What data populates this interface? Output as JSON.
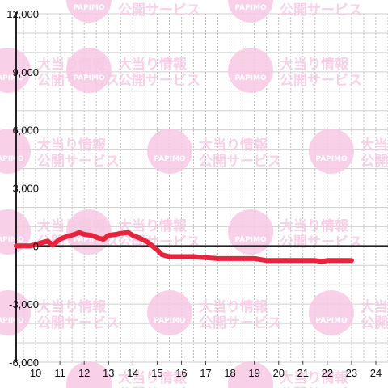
{
  "watermark": {
    "line1": "大当り情報",
    "line2": "公開サービス",
    "logo": "PAPIMO",
    "color": "#f7c9e4"
  },
  "chart_data": {
    "type": "line",
    "title": "",
    "xlabel": "",
    "ylabel": "",
    "xlim": [
      9.2,
      24.5
    ],
    "ylim": [
      -6000,
      12000
    ],
    "y_ticks": [
      12000,
      9000,
      6000,
      3000,
      0,
      -3000,
      -6000
    ],
    "y_tick_labels": [
      "12,000",
      "9,000",
      "6,000",
      "3,000",
      "0",
      "-3,000",
      "-6,000"
    ],
    "x_ticks": [
      10,
      11,
      12,
      13,
      14,
      15,
      16,
      17,
      18,
      19,
      20,
      21,
      22,
      23,
      24
    ],
    "x_tick_labels": [
      "10",
      "11",
      "12",
      "13",
      "14",
      "15",
      "16",
      "17",
      "18",
      "19",
      "20",
      "21",
      "22",
      "23",
      "24"
    ],
    "grid": true,
    "line_color": "#e8243c",
    "series": [
      {
        "x": [
          9.2,
          9.8,
          10.2,
          10.5,
          10.7,
          11.0,
          11.3,
          11.6,
          11.8,
          12.0,
          12.3,
          12.6,
          12.8,
          13.0,
          13.3,
          13.5,
          13.8,
          14.0,
          14.3,
          14.6,
          15.0,
          15.2,
          15.5,
          16.0,
          16.5,
          17.0,
          17.5,
          18.0,
          18.5,
          19.0,
          19.5,
          20.0,
          20.5,
          21.0,
          21.5,
          21.8,
          22.0,
          22.5,
          23.0
        ],
        "y": [
          0,
          0,
          150,
          250,
          50,
          350,
          500,
          600,
          700,
          600,
          550,
          400,
          350,
          550,
          600,
          650,
          700,
          550,
          400,
          200,
          -200,
          -450,
          -550,
          -550,
          -550,
          -600,
          -650,
          -650,
          -650,
          -650,
          -750,
          -750,
          -750,
          -750,
          -750,
          -800,
          -750,
          -750,
          -750
        ]
      }
    ]
  }
}
